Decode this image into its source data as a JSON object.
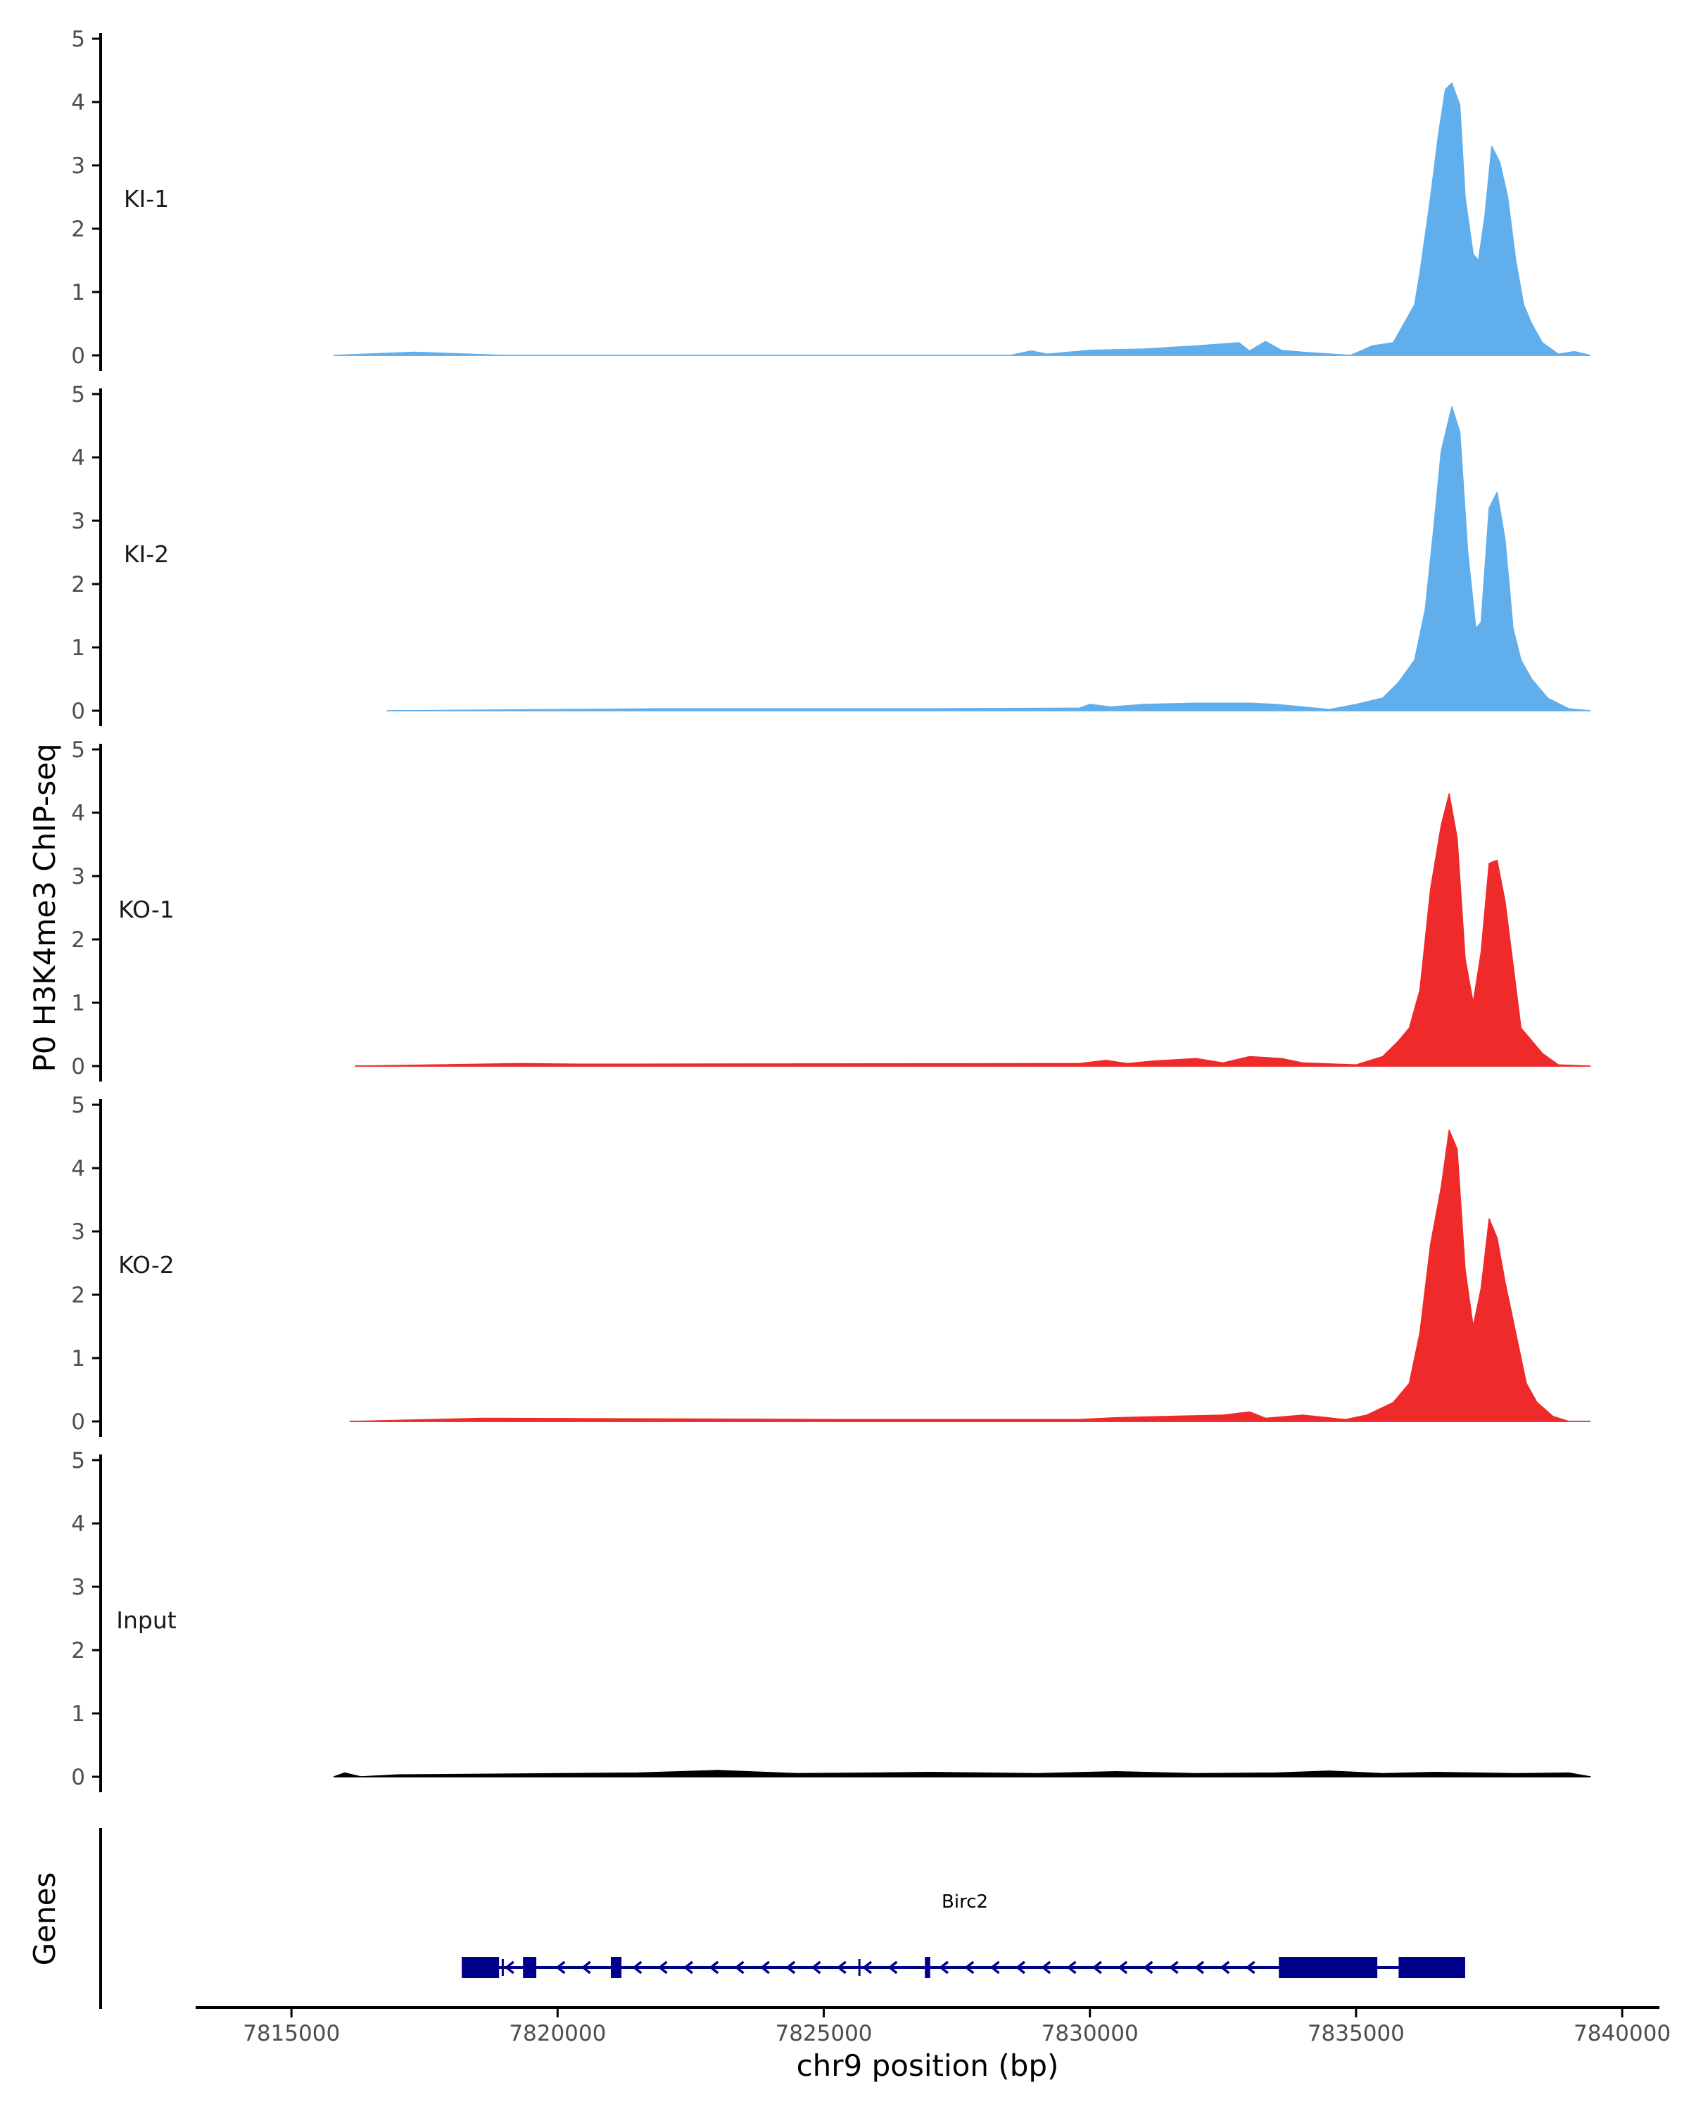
{
  "colors": {
    "KI": "#61aeec",
    "KO": "#ee2a2a",
    "Input": "#000000",
    "gene": "#00008b",
    "axis": "#000000"
  },
  "chart_data": {
    "type": "area",
    "ylabel": "P0 H3K4me3 ChIP-seq",
    "xlabel": "chr9 position (bp)",
    "genes_label": "Genes",
    "ylim": [
      0,
      5
    ],
    "y_ticks": [
      "0",
      "1",
      "2",
      "3",
      "4",
      "5"
    ],
    "xlim": [
      7813200,
      7840700
    ],
    "x_ticks": [
      {
        "value": 7815000,
        "label": "7815000"
      },
      {
        "value": 7820000,
        "label": "7820000"
      },
      {
        "value": 7825000,
        "label": "7825000"
      },
      {
        "value": 7830000,
        "label": "7830000"
      },
      {
        "value": 7835000,
        "label": "7835000"
      },
      {
        "value": 7840000,
        "label": "7840000"
      }
    ],
    "tracks": [
      {
        "name": "KI-1",
        "color_key": "KI",
        "start": 7815800,
        "end": 7839400,
        "points": [
          [
            7815800,
            0
          ],
          [
            7817300,
            0.05
          ],
          [
            7819000,
            0
          ],
          [
            7828500,
            0
          ],
          [
            7828900,
            0.07
          ],
          [
            7829200,
            0.02
          ],
          [
            7830000,
            0.08
          ],
          [
            7831000,
            0.1
          ],
          [
            7832000,
            0.15
          ],
          [
            7832800,
            0.2
          ],
          [
            7833000,
            0.07
          ],
          [
            7833300,
            0.22
          ],
          [
            7833600,
            0.08
          ],
          [
            7834000,
            0.05
          ],
          [
            7834900,
            0
          ],
          [
            7835300,
            0.15
          ],
          [
            7835700,
            0.2
          ],
          [
            7835900,
            0.5
          ],
          [
            7836100,
            0.8
          ],
          [
            7836200,
            1.3
          ],
          [
            7836400,
            2.5
          ],
          [
            7836550,
            3.5
          ],
          [
            7836680,
            4.2
          ],
          [
            7836800,
            4.3
          ],
          [
            7836950,
            3.95
          ],
          [
            7837050,
            2.5
          ],
          [
            7837200,
            1.6
          ],
          [
            7837300,
            1.5
          ],
          [
            7837420,
            2.2
          ],
          [
            7837550,
            3.3
          ],
          [
            7837700,
            3.05
          ],
          [
            7837850,
            2.5
          ],
          [
            7838000,
            1.5
          ],
          [
            7838150,
            0.8
          ],
          [
            7838300,
            0.5
          ],
          [
            7838500,
            0.2
          ],
          [
            7838800,
            0.02
          ],
          [
            7839100,
            0.06
          ],
          [
            7839400,
            0
          ]
        ]
      },
      {
        "name": "KI-2",
        "color_key": "KI",
        "start": 7816800,
        "end": 7839400,
        "points": [
          [
            7816800,
            0
          ],
          [
            7821800,
            0.03
          ],
          [
            7826700,
            0.03
          ],
          [
            7829800,
            0.04
          ],
          [
            7830000,
            0.1
          ],
          [
            7830400,
            0.06
          ],
          [
            7831000,
            0.1
          ],
          [
            7832000,
            0.12
          ],
          [
            7833000,
            0.12
          ],
          [
            7833500,
            0.1
          ],
          [
            7834500,
            0.02
          ],
          [
            7835000,
            0.1
          ],
          [
            7835500,
            0.2
          ],
          [
            7835800,
            0.45
          ],
          [
            7836100,
            0.8
          ],
          [
            7836300,
            1.6
          ],
          [
            7836450,
            2.8
          ],
          [
            7836600,
            4.1
          ],
          [
            7836800,
            4.8
          ],
          [
            7836950,
            4.4
          ],
          [
            7837100,
            2.5
          ],
          [
            7837250,
            1.3
          ],
          [
            7837350,
            1.4
          ],
          [
            7837500,
            3.2
          ],
          [
            7837650,
            3.45
          ],
          [
            7837800,
            2.7
          ],
          [
            7837950,
            1.3
          ],
          [
            7838100,
            0.8
          ],
          [
            7838300,
            0.5
          ],
          [
            7838600,
            0.2
          ],
          [
            7839000,
            0.03
          ],
          [
            7839400,
            0
          ]
        ]
      },
      {
        "name": "KO-1",
        "color_key": "KO",
        "start": 7816200,
        "end": 7839400,
        "points": [
          [
            7816200,
            0
          ],
          [
            7819300,
            0.04
          ],
          [
            7820400,
            0.03
          ],
          [
            7829800,
            0.04
          ],
          [
            7830300,
            0.09
          ],
          [
            7830700,
            0.04
          ],
          [
            7831200,
            0.08
          ],
          [
            7832000,
            0.12
          ],
          [
            7832500,
            0.05
          ],
          [
            7833000,
            0.15
          ],
          [
            7833600,
            0.12
          ],
          [
            7834000,
            0.05
          ],
          [
            7835000,
            0.02
          ],
          [
            7835500,
            0.15
          ],
          [
            7835800,
            0.4
          ],
          [
            7836000,
            0.6
          ],
          [
            7836200,
            1.2
          ],
          [
            7836400,
            2.8
          ],
          [
            7836600,
            3.8
          ],
          [
            7836750,
            4.3
          ],
          [
            7836900,
            3.6
          ],
          [
            7837050,
            1.7
          ],
          [
            7837200,
            1.0
          ],
          [
            7837350,
            1.8
          ],
          [
            7837500,
            3.2
          ],
          [
            7837650,
            3.25
          ],
          [
            7837800,
            2.6
          ],
          [
            7837950,
            1.6
          ],
          [
            7838100,
            0.6
          ],
          [
            7838250,
            0.45
          ],
          [
            7838500,
            0.2
          ],
          [
            7838800,
            0.02
          ],
          [
            7839400,
            0
          ]
        ]
      },
      {
        "name": "KO-2",
        "color_key": "KO",
        "start": 7816100,
        "end": 7839400,
        "points": [
          [
            7816100,
            0
          ],
          [
            7818600,
            0.05
          ],
          [
            7821900,
            0.04
          ],
          [
            7825500,
            0.03
          ],
          [
            7829800,
            0.03
          ],
          [
            7830500,
            0.06
          ],
          [
            7831500,
            0.08
          ],
          [
            7832500,
            0.1
          ],
          [
            7833000,
            0.15
          ],
          [
            7833300,
            0.05
          ],
          [
            7834000,
            0.1
          ],
          [
            7834800,
            0.03
          ],
          [
            7835200,
            0.1
          ],
          [
            7835700,
            0.3
          ],
          [
            7836000,
            0.6
          ],
          [
            7836200,
            1.4
          ],
          [
            7836400,
            2.8
          ],
          [
            7836600,
            3.7
          ],
          [
            7836750,
            4.6
          ],
          [
            7836900,
            4.3
          ],
          [
            7837050,
            2.4
          ],
          [
            7837200,
            1.5
          ],
          [
            7837350,
            2.1
          ],
          [
            7837500,
            3.2
          ],
          [
            7837650,
            2.9
          ],
          [
            7837800,
            2.2
          ],
          [
            7838000,
            1.4
          ],
          [
            7838200,
            0.6
          ],
          [
            7838400,
            0.3
          ],
          [
            7838700,
            0.08
          ],
          [
            7839000,
            0
          ],
          [
            7839400,
            0
          ]
        ]
      },
      {
        "name": "Input",
        "color_key": "Input",
        "start": 7815800,
        "end": 7839400,
        "points": [
          [
            7815800,
            0
          ],
          [
            7816000,
            0.06
          ],
          [
            7816300,
            0
          ],
          [
            7817000,
            0.03
          ],
          [
            7820000,
            0.05
          ],
          [
            7821500,
            0.06
          ],
          [
            7823000,
            0.1
          ],
          [
            7824500,
            0.05
          ],
          [
            7826000,
            0.06
          ],
          [
            7827000,
            0.07
          ],
          [
            7829000,
            0.05
          ],
          [
            7830500,
            0.08
          ],
          [
            7832000,
            0.05
          ],
          [
            7833500,
            0.06
          ],
          [
            7834500,
            0.09
          ],
          [
            7835500,
            0.05
          ],
          [
            7836500,
            0.07
          ],
          [
            7838000,
            0.05
          ],
          [
            7839000,
            0.06
          ],
          [
            7839400,
            0
          ]
        ]
      }
    ],
    "gene": {
      "name": "Birc2",
      "start": 7818200,
      "end": 7837050,
      "strand": "-",
      "exons": [
        [
          7818200,
          7818900
        ],
        [
          7819350,
          7819600
        ],
        [
          7821000,
          7821200
        ],
        [
          7826900,
          7827000
        ],
        [
          7833550,
          7835400
        ],
        [
          7835800,
          7837050
        ]
      ],
      "small_exons": [
        [
          7818950,
          7819000
        ],
        [
          7825650,
          7825700
        ]
      ]
    }
  }
}
